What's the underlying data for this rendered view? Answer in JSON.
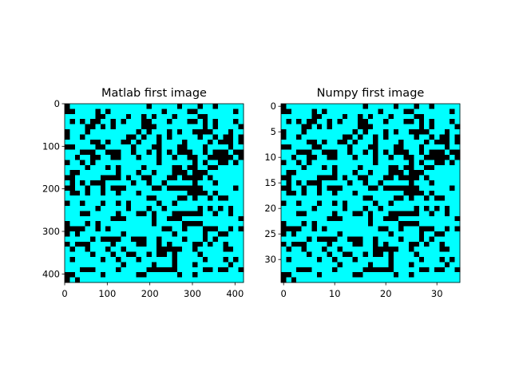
{
  "chart_data": [
    {
      "type": "heatmap",
      "title": "Matlab first image",
      "xlabel": "",
      "ylabel": "",
      "xlim": [
        0,
        420
      ],
      "ylim": [
        420,
        0
      ],
      "x_ticks": [
        0,
        100,
        200,
        300,
        400
      ],
      "y_ticks": [
        0,
        100,
        200,
        300,
        400
      ],
      "grid": false,
      "legend": "none",
      "cell_size": 12,
      "colors": {
        "0": "#000000",
        "1": "#00ffff"
      },
      "rows": [
        "01111111111111110111110111011011111",
        "00111101011111111110111100111111101",
        "11111100111101101011101111001111111",
        "10101001101011100111011100101011101",
        "11110010101111100011111111101011110",
        "01110111111111010111010110000111011",
        "01101111111100101101011111011010010",
        "11111001011001011101111011110100010",
        "00111100111110111001110011101111011",
        "11100011000110110101010001101000100",
        "11011001100111011101101100110000010",
        "01101011111111111101111110101100101",
        "11110111010111101111100100110011111",
        "10011111110111011011100010001111111",
        "00111110000101100111001000010111111",
        "10101000111110110110111110111011111",
        "00110110100011111001000000011111101",
        "10010110110111011111111100001011111",
        "11111111111111110011110010110100111",
        "01101110110101111101101111111111111",
        "11111101111101110110111111010101011",
        "11100111110111001011100000011011011",
        "11111111100011111011000111111111110",
        "01110101111111111011111000011111111",
        "00001101011111111110011011100011010",
        "01011111111011111111101111101100111",
        "11111010000110001101111011101011111",
        "01000111101111001101011110010110111",
        "10110111011011111100000110111110011",
        "11111011101100110100101111011111111",
        "10111110110111011111101111101110101",
        "11111111111011111011101110111111011",
        "11100011110111110000001111100100110",
        "00111110111111001111110110111111111",
        "01011111111111111111111111111111111"
      ]
    },
    {
      "type": "heatmap",
      "title": "Numpy first image",
      "xlabel": "",
      "ylabel": "",
      "xlim": [
        -0.5,
        34.5
      ],
      "ylim": [
        34.5,
        -0.5
      ],
      "x_ticks": [
        0,
        10,
        20,
        30
      ],
      "y_ticks": [
        0,
        5,
        10,
        15,
        20,
        25,
        30
      ],
      "grid": false,
      "legend": "none",
      "cell_size": 1,
      "colors": {
        "0": "#000000",
        "1": "#00ffff"
      },
      "rows": [
        "01111111111111110111110111011011111",
        "00111101011111111110111100111111101",
        "11111100111101101011101111001111111",
        "10101001101011100111011100101011101",
        "11110010101111100011111111101011110",
        "01110111111111010111010110000111011",
        "01101111111100101101011111011010010",
        "11111001011001011101111011110100010",
        "00111100111110111001110011101111011",
        "11100011000110110101010001101000100",
        "11011001100111011101101100110000010",
        "01101011111111111101111110101100101",
        "11110111010111101111100100110011111",
        "10011111110111011011100010001111111",
        "00111110000101100111001000010111111",
        "10101000111110110110111110111011111",
        "00110110100011111001000000011111101",
        "10010110110111011111111100001011111",
        "11111111111111110011110010110100111",
        "01101110110101111101101111111111111",
        "11111101111101110110111111010101011",
        "11100111110111001011100000011011011",
        "11111111100011111011000111111111110",
        "01110101111111111011111000011111111",
        "00001101011111111110011011100011010",
        "01011111111011111111101111101100111",
        "11111010000110001101111011101011111",
        "01000111101111001101011110010110111",
        "10110111011011111100000110111110011",
        "11111011101100110100101111011111111",
        "10111110110111011111101111101110101",
        "11111111111011111011101110111111011",
        "11100011110111110000001111100100110",
        "00111110111111001111110110111111111",
        "01011111111111111111111111111111111"
      ]
    }
  ]
}
